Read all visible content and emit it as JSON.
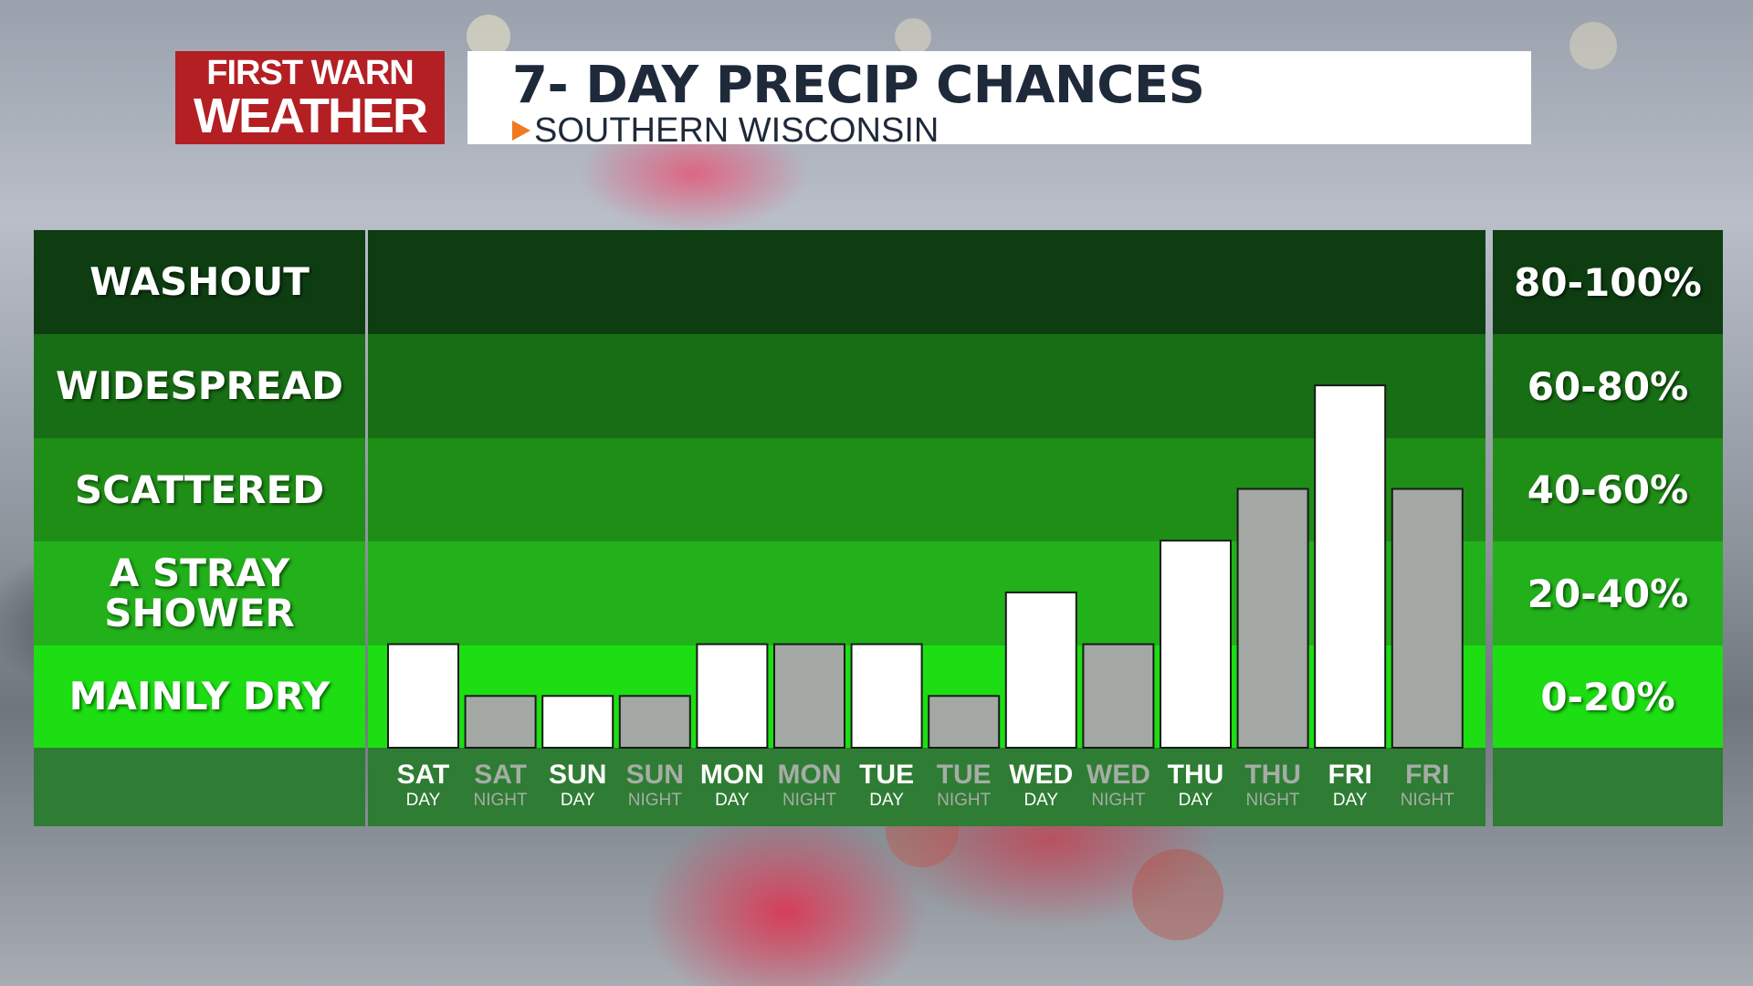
{
  "logo": {
    "line1": "FIRST WARN",
    "line2": "WEATHER"
  },
  "header": {
    "title": "7- DAY PRECIP CHANCES",
    "subtitle": "SOUTHERN WISCONSIN"
  },
  "categories": [
    {
      "name": "WASHOUT",
      "range": "80-100%"
    },
    {
      "name": "WIDESPREAD",
      "range": "60-80%"
    },
    {
      "name": "SCATTERED",
      "range": "40-60%"
    },
    {
      "name": "A STRAY SHOWER",
      "range": "20-40%"
    },
    {
      "name": "MAINLY DRY",
      "range": "0-20%"
    }
  ],
  "colors": {
    "band_washout": "#0e3d11",
    "band_widespread": "#176e14",
    "band_scattered": "#1f8e17",
    "band_stray": "#22b11a",
    "band_dry": "#1cde13",
    "axis_band": "#2f7c34",
    "day_bar": "#ffffff",
    "night_bar": "#a3a8a4",
    "night_label": "#a6ada6",
    "logo_red": "#b41f24",
    "accent_orange": "#f07a20"
  },
  "chart_data": {
    "type": "bar",
    "categories": [
      {
        "label": "SAT",
        "period": "DAY"
      },
      {
        "label": "SAT",
        "period": "NIGHT"
      },
      {
        "label": "SUN",
        "period": "DAY"
      },
      {
        "label": "SUN",
        "period": "NIGHT"
      },
      {
        "label": "MON",
        "period": "DAY"
      },
      {
        "label": "MON",
        "period": "NIGHT"
      },
      {
        "label": "TUE",
        "period": "DAY"
      },
      {
        "label": "TUE",
        "period": "NIGHT"
      },
      {
        "label": "WED",
        "period": "DAY"
      },
      {
        "label": "WED",
        "period": "NIGHT"
      },
      {
        "label": "THU",
        "period": "DAY"
      },
      {
        "label": "THU",
        "period": "NIGHT"
      },
      {
        "label": "FRI",
        "period": "DAY"
      },
      {
        "label": "FRI",
        "period": "NIGHT"
      }
    ],
    "values": [
      20,
      10,
      10,
      10,
      20,
      20,
      20,
      10,
      30,
      20,
      40,
      50,
      70,
      50
    ],
    "ylim": [
      0,
      100
    ],
    "y_unit": "%",
    "grid": false,
    "legend": "none"
  }
}
